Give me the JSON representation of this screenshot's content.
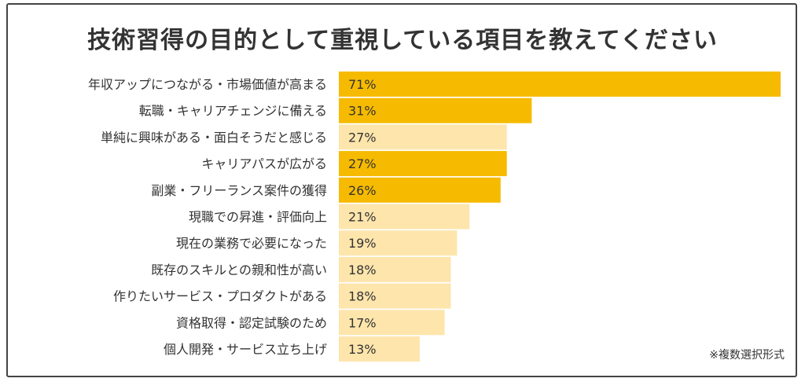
{
  "chart_data": {
    "type": "bar",
    "orientation": "horizontal",
    "title": "技術習得の目的として重視している項目を教えてください",
    "note": "※複数選択形式",
    "categories": [
      "年収アップにつながる・市場価値が高まる",
      "転職・キャリアチェンジに備える",
      "単純に興味がある・面白そうだと感じる",
      "キャリアパスが広がる",
      "副業・フリーランス案件の獲得",
      "現職での昇進・評価向上",
      "現在の業務で必要になった",
      "既存のスキルとの親和性が高い",
      "作りたいサービス・プロダクトがある",
      "資格取得・認定試験のため",
      "個人開発・サービス立ち上げ"
    ],
    "values": [
      71,
      31,
      27,
      27,
      26,
      21,
      19,
      18,
      18,
      17,
      13
    ],
    "labels": [
      "71%",
      "31%",
      "27%",
      "27%",
      "26%",
      "21%",
      "19%",
      "18%",
      "18%",
      "17%",
      "13%"
    ],
    "highlighted": [
      true,
      true,
      false,
      true,
      true,
      false,
      false,
      false,
      false,
      false,
      false
    ],
    "colors": {
      "highlight": "#F6BB00",
      "normal": "#FDE5AC",
      "text": "#333333"
    },
    "grid": false,
    "legend": "none"
  }
}
